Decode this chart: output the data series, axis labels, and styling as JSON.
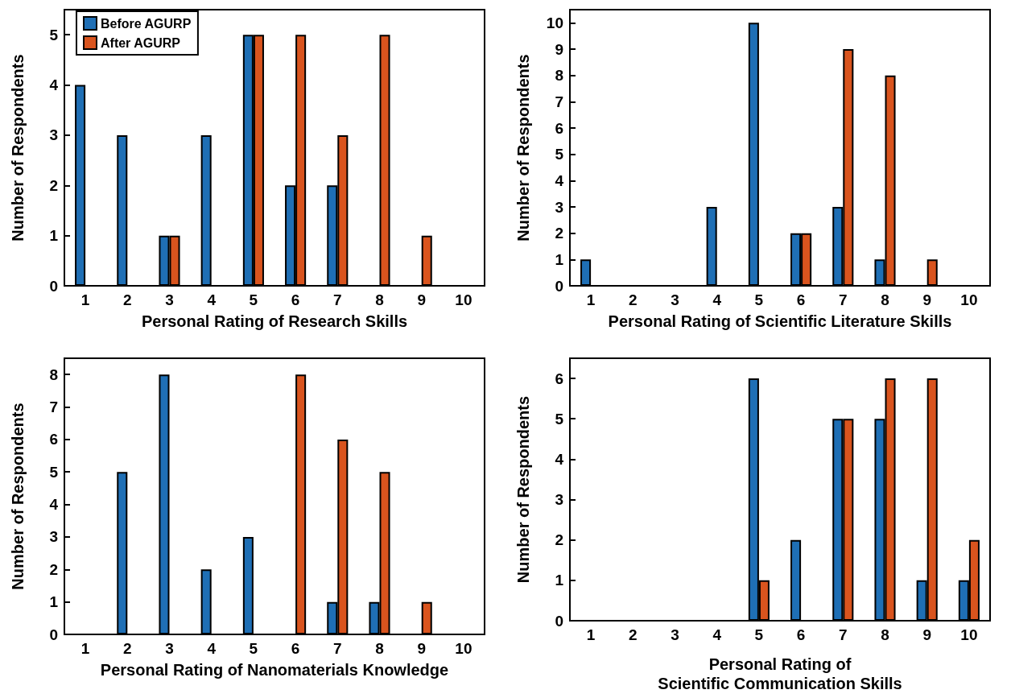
{
  "chart_data": [
    {
      "type": "bar",
      "xlabel": "Personal Rating of Research Skills",
      "ylabel": "Number of Respondents",
      "categories": [
        "1",
        "2",
        "3",
        "4",
        "5",
        "6",
        "7",
        "8",
        "9",
        "10"
      ],
      "series": [
        {
          "name": "Before AGURP",
          "color": "#1f6fb5",
          "values": [
            4,
            3,
            1,
            3,
            5,
            2,
            2,
            0,
            0,
            0
          ]
        },
        {
          "name": "After AGURP",
          "color": "#d9541e",
          "values": [
            0,
            0,
            1,
            0,
            5,
            5,
            3,
            5,
            1,
            0
          ]
        }
      ],
      "ylim": [
        0,
        5.5
      ],
      "yticks": [
        0,
        1,
        2,
        3,
        4,
        5
      ],
      "grid": false,
      "legend": "top left"
    },
    {
      "type": "bar",
      "xlabel": "Personal Rating of Scientific Literature Skills",
      "ylabel": "Number of Respondents",
      "categories": [
        "1",
        "2",
        "3",
        "4",
        "5",
        "6",
        "7",
        "8",
        "9",
        "10"
      ],
      "series": [
        {
          "color": "#1f6fb5",
          "values": [
            1,
            0,
            0,
            3,
            10,
            2,
            3,
            1,
            0,
            0
          ]
        },
        {
          "color": "#d9541e",
          "values": [
            0,
            0,
            0,
            0,
            0,
            2,
            9,
            8,
            1,
            0
          ]
        }
      ],
      "ylim": [
        0,
        10.5
      ],
      "yticks": [
        0,
        1,
        2,
        3,
        4,
        5,
        6,
        7,
        8,
        9,
        10
      ],
      "grid": false,
      "legend": false
    },
    {
      "type": "bar",
      "xlabel": "Personal Rating of Nanomaterials Knowledge",
      "ylabel": "Number of Respondents",
      "categories": [
        "1",
        "2",
        "3",
        "4",
        "5",
        "6",
        "7",
        "8",
        "9",
        "10"
      ],
      "series": [
        {
          "color": "#1f6fb5",
          "values": [
            0,
            5,
            8,
            2,
            3,
            0,
            1,
            1,
            0,
            0
          ]
        },
        {
          "color": "#d9541e",
          "values": [
            0,
            0,
            0,
            0,
            0,
            8,
            6,
            5,
            1,
            0
          ]
        }
      ],
      "ylim": [
        0,
        8.5
      ],
      "yticks": [
        0,
        1,
        2,
        3,
        4,
        5,
        6,
        7,
        8
      ],
      "grid": false,
      "legend": false
    },
    {
      "type": "bar",
      "xlabel": "Personal Rating of\nScientific Communication Skills",
      "ylabel": "Number of Respondents",
      "categories": [
        "1",
        "2",
        "3",
        "4",
        "5",
        "6",
        "7",
        "8",
        "9",
        "10"
      ],
      "series": [
        {
          "color": "#1f6fb5",
          "values": [
            0,
            0,
            0,
            0,
            6,
            2,
            5,
            5,
            1,
            1
          ]
        },
        {
          "color": "#d9541e",
          "values": [
            0,
            0,
            0,
            0,
            1,
            0,
            5,
            6,
            6,
            2
          ]
        }
      ],
      "ylim": [
        0,
        6.5
      ],
      "yticks": [
        0,
        1,
        2,
        3,
        4,
        5,
        6
      ],
      "grid": false,
      "legend": false
    }
  ]
}
